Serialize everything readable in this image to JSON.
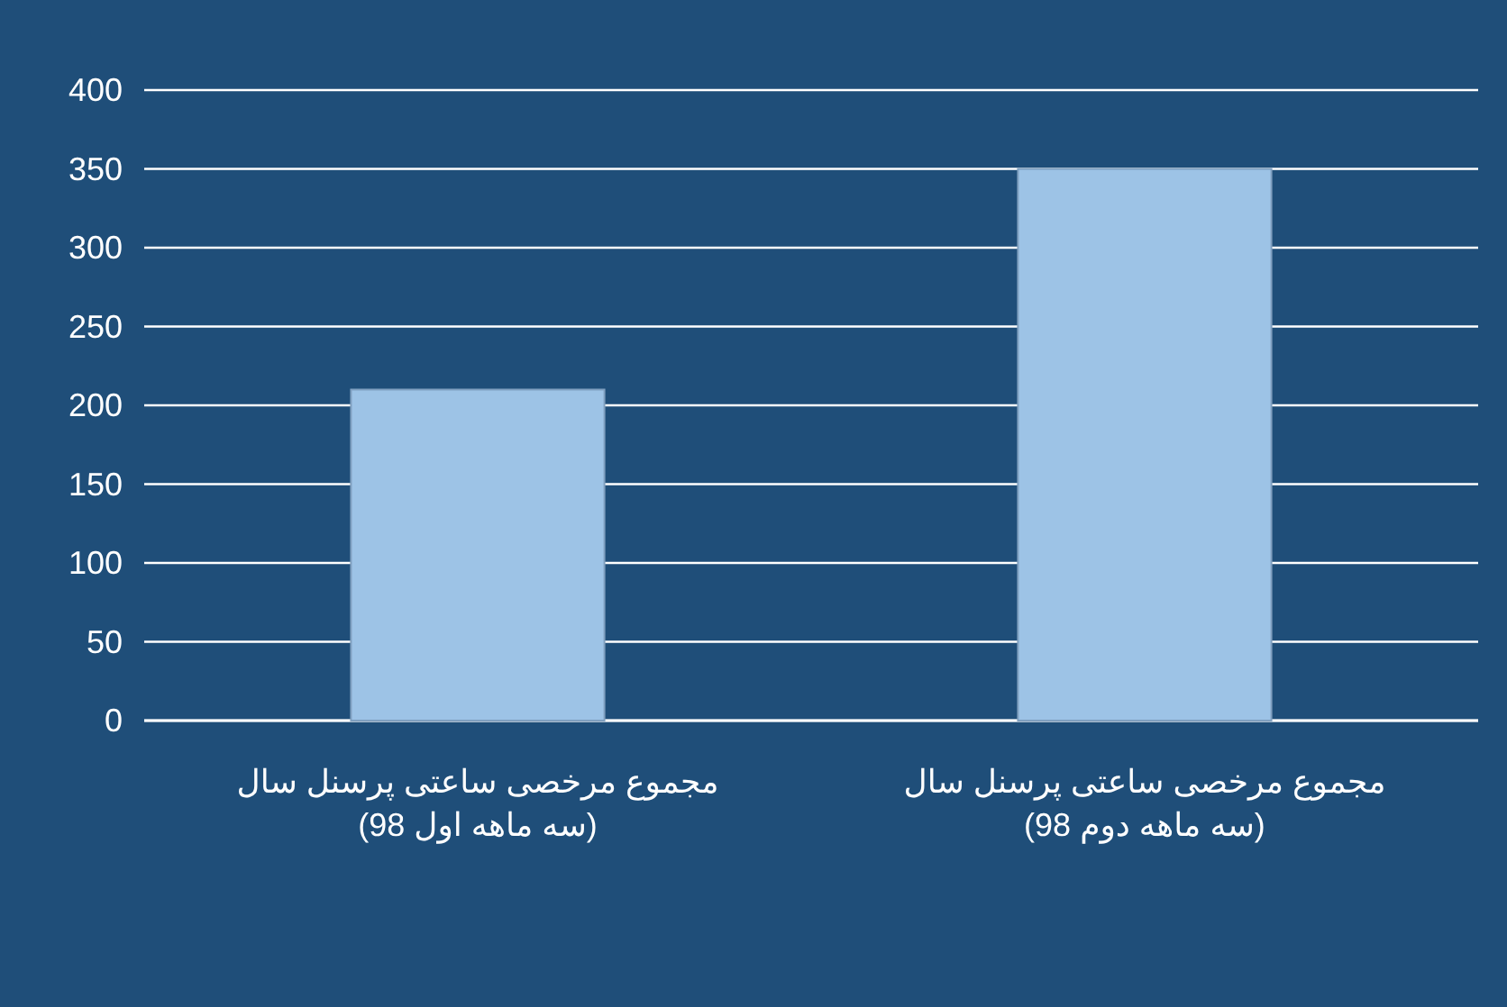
{
  "chart_data": {
    "type": "bar",
    "categories": [
      "مجموع مرخصی ساعتی پرسنل سال\n(سه ماهه اول 98)",
      "مجموع مرخصی ساعتی پرسنل سال\n(سه ماهه دوم 98)"
    ],
    "values": [
      210,
      350
    ],
    "color": "#9dc3e6",
    "ylim": [
      0,
      400
    ],
    "yticks": [
      0,
      50,
      100,
      150,
      200,
      250,
      300,
      350,
      400
    ],
    "grid": true
  }
}
